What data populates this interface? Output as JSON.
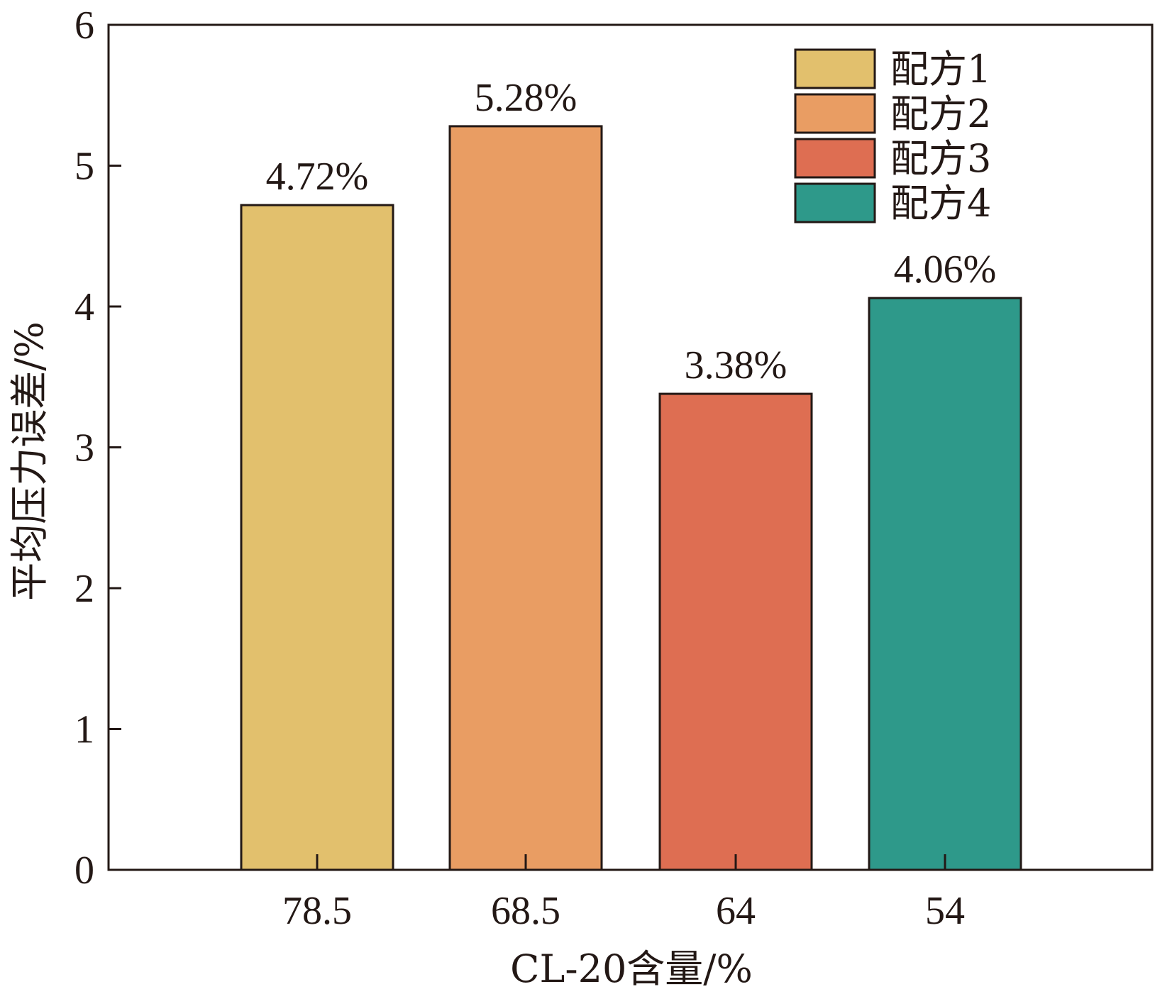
{
  "chart_data": {
    "type": "bar",
    "categories": [
      "78.5",
      "68.5",
      "64",
      "54"
    ],
    "values": [
      4.72,
      5.28,
      3.38,
      4.06
    ],
    "value_labels": [
      "4.72%",
      "5.28%",
      "3.38%",
      "4.06%"
    ],
    "series_names": [
      "配方1",
      "配方2",
      "配方3",
      "配方4"
    ],
    "colors": [
      "#E2C06D",
      "#E99D63",
      "#DE6E52",
      "#2E998A"
    ],
    "xlabel": "CL-20含量/%",
    "ylabel": "平均压力误差/%",
    "ylim": [
      0,
      6
    ],
    "yticks": [
      "0",
      "1",
      "2",
      "3",
      "4",
      "5",
      "6"
    ],
    "grid": false,
    "legend_position": "top-right"
  }
}
